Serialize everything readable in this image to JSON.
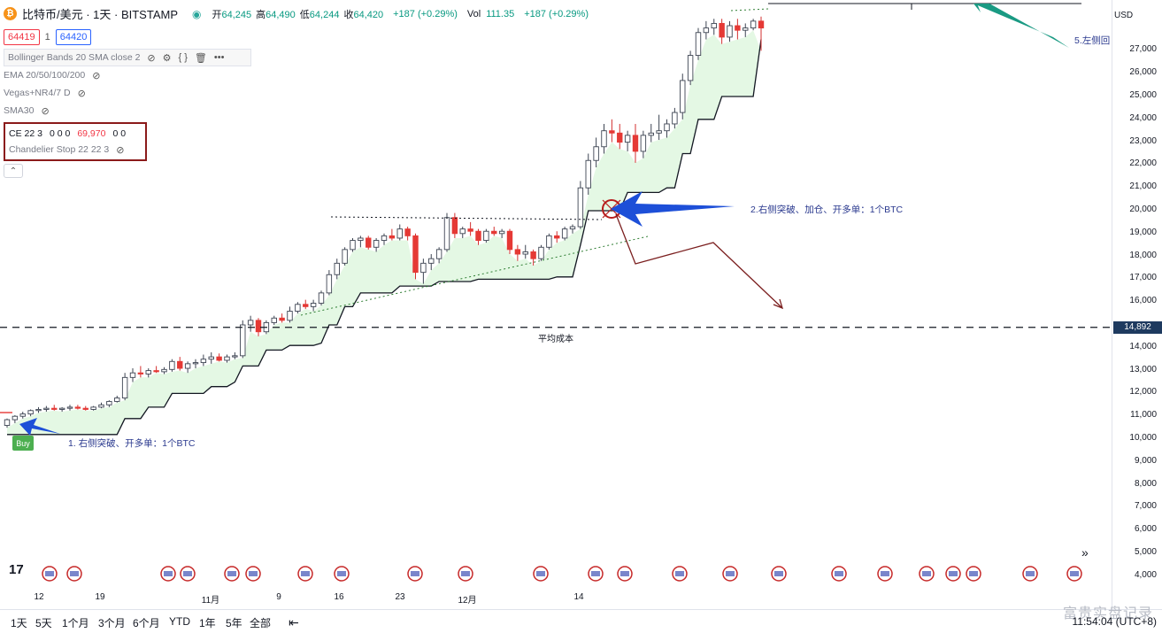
{
  "header": {
    "coin_glyph": "₿",
    "symbol": "比特币/美元 · 1天 · BITSTAMP",
    "live_dot": "◉",
    "ohlc": [
      {
        "k": "开",
        "v": "64,245"
      },
      {
        "k": "高",
        "v": "64,490"
      },
      {
        "k": "低",
        "v": "64,244"
      },
      {
        "k": "收",
        "v": "64,420"
      }
    ],
    "change": "+187 (+0.29%)",
    "vol_label": "Vol",
    "vol_value": "111.35",
    "vol_change": "+187 (+0.29%)",
    "sell_price": "64419",
    "qty": "1",
    "buy_price": "64420"
  },
  "indicators": [
    {
      "label": "Bollinger Bands 20 SMA close 2"
    },
    {
      "label": "EMA 20/50/100/200"
    },
    {
      "label": "Vegas+NR4/7 D"
    },
    {
      "label": "SMA30"
    }
  ],
  "ce": {
    "label": "CE 22 3",
    "zeros_a": "0 0 0",
    "value": "69,970",
    "zeros_b": "0 0",
    "sub_label": "Chandelier Stop 22 22 3"
  },
  "icons": {
    "eye": "eye-off-icon",
    "settings": "gear-icon",
    "source": "code-icon",
    "delete": "trash-icon",
    "more": "more-icon"
  },
  "price_axis": {
    "currency": "USD",
    "ticks": [
      {
        "label": "27,000",
        "v": 27000
      },
      {
        "label": "26,000",
        "v": 26000
      },
      {
        "label": "25,000",
        "v": 25000
      },
      {
        "label": "24,000",
        "v": 24000
      },
      {
        "label": "23,000",
        "v": 23000
      },
      {
        "label": "22,000",
        "v": 22000
      },
      {
        "label": "21,000",
        "v": 21000
      },
      {
        "label": "20,000",
        "v": 20000
      },
      {
        "label": "19,000",
        "v": 19000
      },
      {
        "label": "18,000",
        "v": 18000
      },
      {
        "label": "17,000",
        "v": 17000
      },
      {
        "label": "16,000",
        "v": 16000
      },
      {
        "label": "14,892",
        "v": 14892,
        "tag": true
      },
      {
        "label": "14,000",
        "v": 14000
      },
      {
        "label": "13,000",
        "v": 13000
      },
      {
        "label": "12,000",
        "v": 12000
      },
      {
        "label": "11,000",
        "v": 11000
      },
      {
        "label": "10,000",
        "v": 10000
      },
      {
        "label": "9,000",
        "v": 9000
      },
      {
        "label": "8,000",
        "v": 8000
      },
      {
        "label": "7,000",
        "v": 7000
      },
      {
        "label": "6,000",
        "v": 6000
      },
      {
        "label": "5,000",
        "v": 5000
      },
      {
        "label": "4,000",
        "v": 4000
      }
    ]
  },
  "time_axis": [
    "12",
    "19",
    "11月",
    "9",
    "16",
    "23",
    "12月",
    "14"
  ],
  "annotations": {
    "a1": "1. 右侧突破、开多单：1个BTC",
    "a2": "2.右侧突破、加仓、开多单：1个BTC",
    "a5": "5.左侧回",
    "avg": "平均成本",
    "buy": "Buy"
  },
  "bottom": {
    "ranges": [
      "1天",
      "5天",
      "1个月",
      "3个月",
      "6个月",
      "YTD",
      "1年",
      "5年",
      "全部"
    ],
    "tz": "11:54:04 (UTC+8)",
    "watermark": "富贵实盘记录"
  },
  "logo": "17",
  "chart_data": {
    "type": "candlestick",
    "title": "比特币/美元 · 1天 · BITSTAMP",
    "ylabel": "USD",
    "ylim": [
      4000,
      28500
    ],
    "x_ticks": [
      "12",
      "19",
      "11月",
      "9",
      "16",
      "23",
      "12月",
      "14"
    ],
    "reference_lines": [
      {
        "label": "平均成本",
        "value": 14892
      }
    ],
    "candles": [
      [
        10600,
        10900,
        10500,
        10850
      ],
      [
        10850,
        11050,
        10700,
        11000
      ],
      [
        11000,
        11200,
        10900,
        11100
      ],
      [
        11100,
        11300,
        11000,
        11250
      ],
      [
        11250,
        11400,
        11150,
        11300
      ],
      [
        11300,
        11450,
        11200,
        11350
      ],
      [
        11350,
        11500,
        11250,
        11300
      ],
      [
        11300,
        11400,
        11200,
        11350
      ],
      [
        11350,
        11500,
        11250,
        11400
      ],
      [
        11400,
        11500,
        11300,
        11350
      ],
      [
        11350,
        11450,
        11250,
        11300
      ],
      [
        11300,
        11450,
        11250,
        11400
      ],
      [
        11400,
        11600,
        11350,
        11500
      ],
      [
        11500,
        11700,
        11400,
        11650
      ],
      [
        11650,
        11900,
        11600,
        11800
      ],
      [
        11800,
        12900,
        11700,
        12700
      ],
      [
        12700,
        13100,
        12500,
        12900
      ],
      [
        12900,
        13200,
        12700,
        12850
      ],
      [
        12850,
        13100,
        12700,
        13000
      ],
      [
        13000,
        13200,
        12900,
        12950
      ],
      [
        12950,
        13150,
        12850,
        13050
      ],
      [
        13050,
        13500,
        12950,
        13400
      ],
      [
        13400,
        13600,
        13000,
        13100
      ],
      [
        13100,
        13400,
        12900,
        13300
      ],
      [
        13300,
        13500,
        13100,
        13350
      ],
      [
        13350,
        13700,
        13200,
        13500
      ],
      [
        13500,
        13800,
        13300,
        13600
      ],
      [
        13600,
        13750,
        13400,
        13450
      ],
      [
        13450,
        13700,
        13350,
        13600
      ],
      [
        13600,
        13800,
        13500,
        13650
      ],
      [
        13650,
        15200,
        13550,
        15000
      ],
      [
        15000,
        15400,
        14700,
        15200
      ],
      [
        15200,
        15300,
        14500,
        14700
      ],
      [
        14700,
        15200,
        14600,
        15100
      ],
      [
        15100,
        15400,
        15000,
        15300
      ],
      [
        15300,
        15500,
        15100,
        15200
      ],
      [
        15200,
        15800,
        15100,
        15600
      ],
      [
        15600,
        16000,
        15500,
        15900
      ],
      [
        15900,
        16100,
        15700,
        15800
      ],
      [
        15800,
        16100,
        15600,
        15950
      ],
      [
        15950,
        16500,
        15850,
        16400
      ],
      [
        16400,
        17400,
        16300,
        17200
      ],
      [
        17200,
        17900,
        17000,
        17700
      ],
      [
        17700,
        18400,
        17600,
        18300
      ],
      [
        18300,
        18800,
        18200,
        18700
      ],
      [
        18700,
        18900,
        18400,
        18800
      ],
      [
        18800,
        18900,
        18300,
        18400
      ],
      [
        18400,
        18800,
        18200,
        18700
      ],
      [
        18700,
        19000,
        18500,
        18900
      ],
      [
        18900,
        19200,
        18700,
        18800
      ],
      [
        18800,
        19400,
        18700,
        19200
      ],
      [
        19200,
        19300,
        18700,
        18900
      ],
      [
        18900,
        19000,
        17000,
        17300
      ],
      [
        17300,
        17900,
        16800,
        17700
      ],
      [
        17700,
        18100,
        17400,
        17900
      ],
      [
        17900,
        18400,
        17700,
        18300
      ],
      [
        18300,
        19900,
        18200,
        19700
      ],
      [
        19700,
        19900,
        18800,
        19000
      ],
      [
        19000,
        19300,
        18800,
        19200
      ],
      [
        19200,
        19500,
        18900,
        19100
      ],
      [
        19100,
        19200,
        18500,
        18700
      ],
      [
        18700,
        19200,
        18600,
        19100
      ],
      [
        19100,
        19300,
        18900,
        19000
      ],
      [
        19000,
        19200,
        18800,
        19100
      ],
      [
        19100,
        19200,
        18100,
        18300
      ],
      [
        18300,
        18500,
        17800,
        18100
      ],
      [
        18100,
        18500,
        17900,
        18200
      ],
      [
        18200,
        18300,
        17600,
        17900
      ],
      [
        17900,
        18500,
        17800,
        18400
      ],
      [
        18400,
        19000,
        18300,
        18900
      ],
      [
        18900,
        19100,
        18600,
        18800
      ],
      [
        18800,
        19300,
        18700,
        19200
      ],
      [
        19200,
        19400,
        19000,
        19300
      ],
      [
        19300,
        21300,
        19200,
        21000
      ],
      [
        21000,
        22500,
        20700,
        22200
      ],
      [
        22200,
        23200,
        21900,
        22800
      ],
      [
        22800,
        23800,
        22500,
        23500
      ],
      [
        23500,
        24000,
        23000,
        23400
      ],
      [
        23400,
        23800,
        22700,
        23000
      ],
      [
        23000,
        23500,
        22600,
        23300
      ],
      [
        23300,
        23800,
        22100,
        22600
      ],
      [
        22600,
        23500,
        22300,
        23300
      ],
      [
        23300,
        23800,
        23000,
        23400
      ],
      [
        23400,
        24200,
        23100,
        23500
      ],
      [
        23500,
        24000,
        23200,
        23800
      ],
      [
        23800,
        24500,
        23600,
        24300
      ],
      [
        24300,
        26000,
        24000,
        25700
      ],
      [
        25700,
        27000,
        25500,
        26800
      ],
      [
        26800,
        28000,
        26600,
        27800
      ],
      [
        27800,
        28300,
        27500,
        28000
      ],
      [
        28000,
        28400,
        27700,
        28200
      ],
      [
        28200,
        28400,
        27300,
        27600
      ],
      [
        27600,
        28300,
        27400,
        28100
      ],
      [
        28100,
        28400,
        27500,
        27900
      ],
      [
        27900,
        28200,
        27600,
        28000
      ],
      [
        28000,
        28400,
        27900,
        28300
      ],
      [
        28300,
        28500,
        27000,
        28000
      ]
    ],
    "chandelier_stop": [
      [
        0,
        10200
      ],
      [
        14,
        10200
      ],
      [
        15,
        10900
      ],
      [
        18,
        11400
      ],
      [
        21,
        12000
      ],
      [
        26,
        12300
      ],
      [
        29,
        12500
      ],
      [
        30,
        13200
      ],
      [
        33,
        13900
      ],
      [
        36,
        14100
      ],
      [
        40,
        14200
      ],
      [
        41,
        15000
      ],
      [
        43,
        15800
      ],
      [
        45,
        16400
      ],
      [
        50,
        16700
      ],
      [
        55,
        16900
      ],
      [
        60,
        17000
      ],
      [
        70,
        17100
      ],
      [
        73,
        18500
      ],
      [
        74,
        20000
      ],
      [
        79,
        20800
      ],
      [
        84,
        21000
      ],
      [
        86,
        22500
      ],
      [
        88,
        24000
      ],
      [
        91,
        25000
      ],
      [
        96,
        27500
      ]
    ]
  }
}
